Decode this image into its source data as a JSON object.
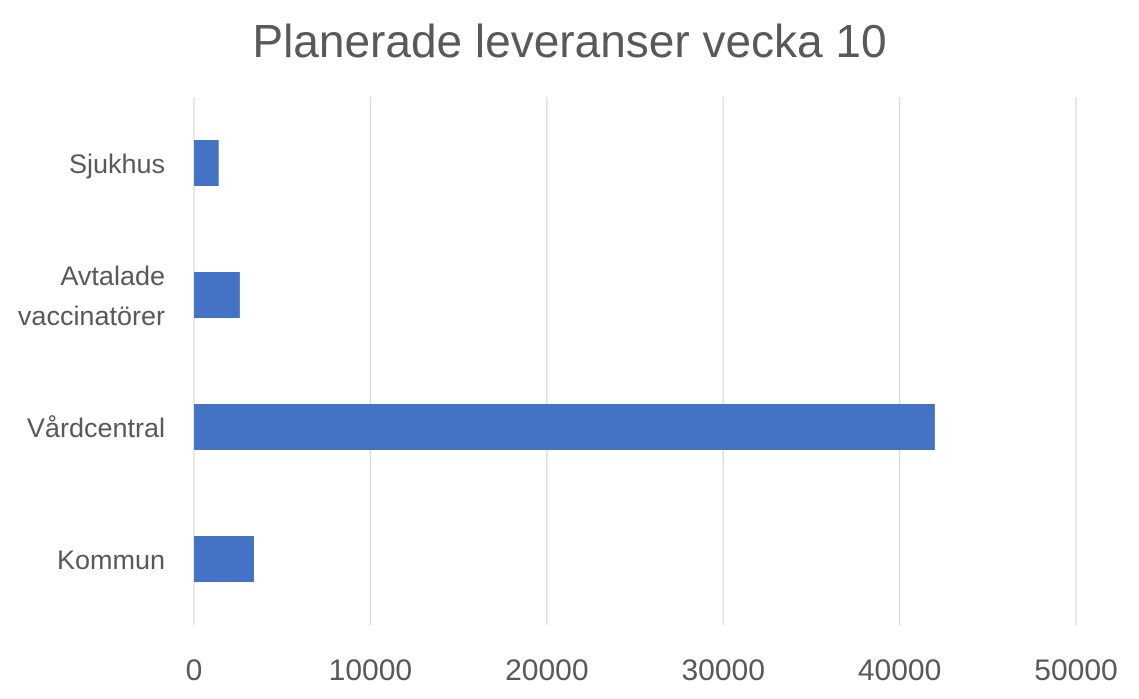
{
  "chart_data": {
    "type": "bar",
    "orientation": "horizontal",
    "title": "Planerade leveranser vecka 10",
    "categories": [
      "Sjukhus",
      "Avtalade vaccinatörer",
      "Vårdcentral",
      "Kommun"
    ],
    "category_label_lines": [
      [
        "Sjukhus"
      ],
      [
        "Avtalade",
        "vaccinatörer"
      ],
      [
        "Vårdcentral"
      ],
      [
        "Kommun"
      ]
    ],
    "values": [
      1400,
      2600,
      42000,
      3400
    ],
    "xlim": [
      0,
      50000
    ],
    "xticks": [
      "0",
      "10000",
      "20000",
      "30000",
      "40000",
      "50000"
    ],
    "xlabel": "",
    "ylabel": "",
    "grid": "vertical",
    "legend": "none",
    "bar_color": "#4472C4",
    "grid_color": "#D9D9D9"
  }
}
